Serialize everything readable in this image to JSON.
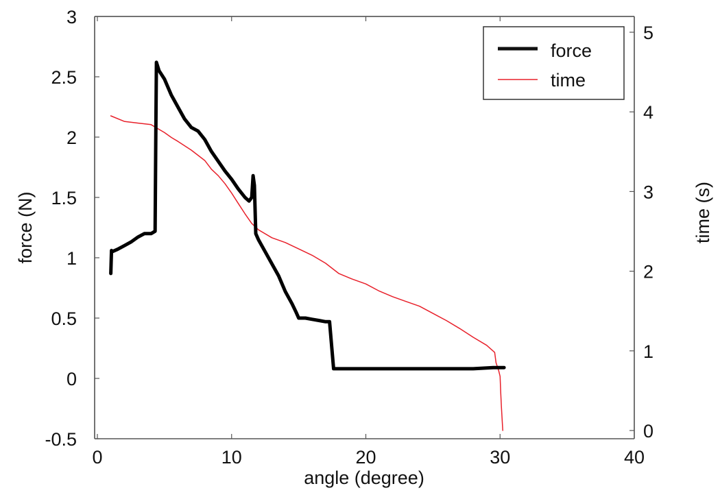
{
  "chart_data": {
    "type": "line",
    "title": "",
    "xlabel": "angle (degree)",
    "ylabel": "force (N)",
    "y2label": "time (s)",
    "xlim": [
      0,
      40
    ],
    "ylim": [
      -0.5,
      3
    ],
    "y2lim": [
      0,
      5
    ],
    "xticks": [
      0,
      10,
      20,
      30,
      40
    ],
    "yticks": [
      -0.5,
      0,
      0.5,
      1,
      1.5,
      2,
      2.5,
      3
    ],
    "y2ticks": [
      0,
      1,
      2,
      3,
      4,
      5
    ],
    "xtick_labels": [
      "0",
      "10",
      "20",
      "30",
      "40"
    ],
    "ytick_labels": [
      "-0.5",
      "0",
      "0.5",
      "1",
      "1.5",
      "2",
      "2.5",
      "3"
    ],
    "y2tick_labels": [
      "0",
      "1",
      "2",
      "3",
      "4",
      "5"
    ],
    "grid": false,
    "legend_position": "upper right",
    "series": [
      {
        "name": "force",
        "axis": "left",
        "color": "#000000",
        "line_width": 5,
        "x": [
          1.0,
          1.05,
          1.1,
          1.5,
          2.0,
          2.5,
          3.0,
          3.5,
          4.0,
          4.3,
          4.35,
          4.4,
          4.6,
          5.0,
          5.5,
          6.0,
          6.5,
          7.0,
          7.5,
          8.0,
          8.5,
          9.0,
          9.5,
          10.0,
          10.5,
          11.0,
          11.3,
          11.5,
          11.6,
          11.7,
          11.8,
          12.0,
          12.5,
          13.0,
          13.5,
          14.0,
          14.5,
          14.8,
          15.0,
          15.5,
          16.0,
          16.5,
          17.0,
          17.3,
          17.6,
          18.0,
          20.0,
          22.0,
          24.0,
          26.0,
          28.0,
          29.5,
          30.0,
          30.3
        ],
        "values": [
          0.87,
          1.06,
          1.05,
          1.07,
          1.1,
          1.13,
          1.17,
          1.2,
          1.2,
          1.22,
          2.0,
          2.62,
          2.55,
          2.48,
          2.35,
          2.25,
          2.15,
          2.08,
          2.05,
          1.98,
          1.88,
          1.8,
          1.72,
          1.65,
          1.57,
          1.5,
          1.47,
          1.5,
          1.68,
          1.6,
          1.2,
          1.15,
          1.05,
          0.95,
          0.85,
          0.72,
          0.62,
          0.55,
          0.5,
          0.5,
          0.49,
          0.48,
          0.47,
          0.47,
          0.08,
          0.08,
          0.08,
          0.08,
          0.08,
          0.08,
          0.08,
          0.09,
          0.09,
          0.09
        ]
      },
      {
        "name": "time",
        "axis": "right",
        "color": "#e8202a",
        "line_width": 1.5,
        "x": [
          1.0,
          2.0,
          3.0,
          4.0,
          4.5,
          5.0,
          5.5,
          6.0,
          7.0,
          8.0,
          8.5,
          9.0,
          9.5,
          10.0,
          10.5,
          11.0,
          11.5,
          12.0,
          13.0,
          14.0,
          15.0,
          16.0,
          17.0,
          18.0,
          19.0,
          20.0,
          21.0,
          22.0,
          23.0,
          24.0,
          25.0,
          26.0,
          27.0,
          28.0,
          29.0,
          29.6,
          29.7,
          29.9,
          30.0,
          30.05,
          30.1,
          30.15,
          30.2
        ],
        "values": [
          3.95,
          3.88,
          3.86,
          3.84,
          3.79,
          3.74,
          3.68,
          3.63,
          3.52,
          3.39,
          3.28,
          3.2,
          3.1,
          2.98,
          2.85,
          2.72,
          2.6,
          2.52,
          2.42,
          2.36,
          2.28,
          2.2,
          2.1,
          1.97,
          1.9,
          1.84,
          1.75,
          1.68,
          1.62,
          1.56,
          1.47,
          1.38,
          1.28,
          1.17,
          1.07,
          0.98,
          0.85,
          0.75,
          0.68,
          0.48,
          0.3,
          0.15,
          0.0
        ]
      }
    ]
  },
  "legend": {
    "items": [
      {
        "label": "force",
        "color": "#000000"
      },
      {
        "label": "time",
        "color": "#e8202a"
      }
    ]
  }
}
